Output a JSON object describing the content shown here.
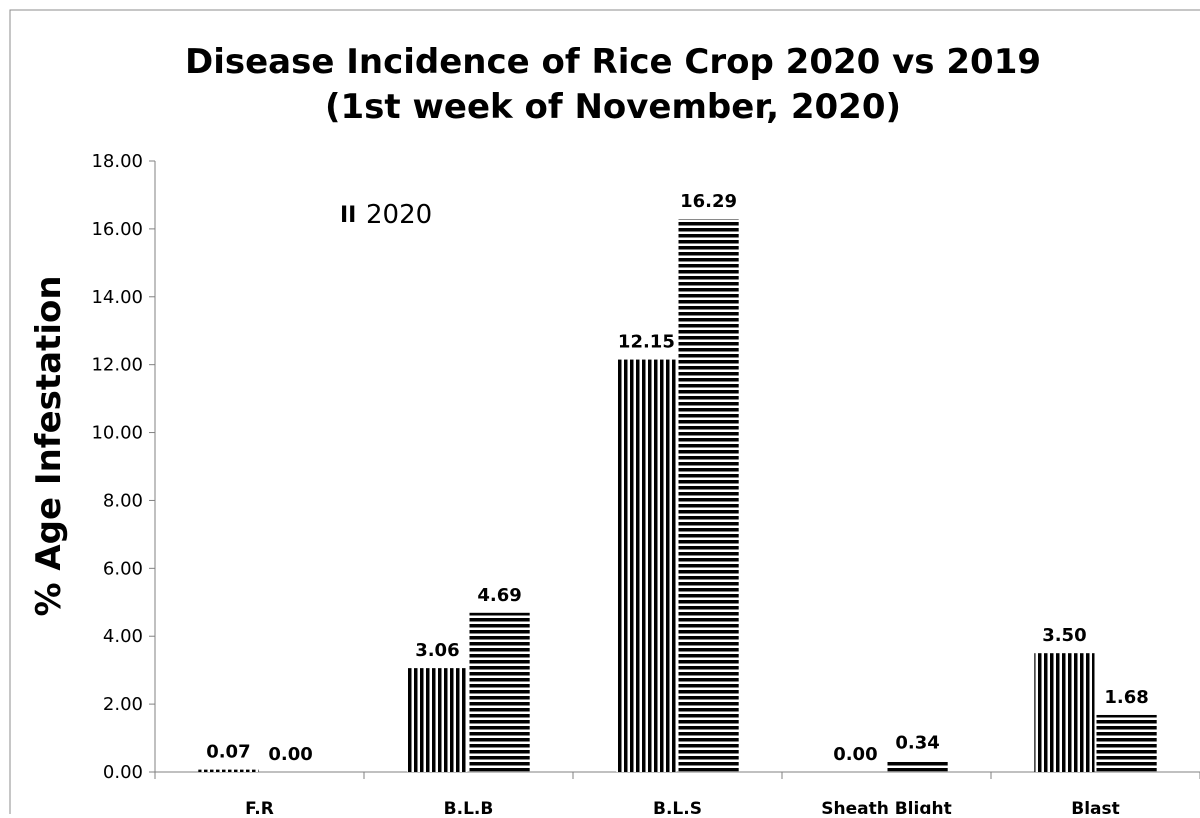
{
  "chart_data": {
    "type": "bar",
    "title": [
      "Disease Incidence of Rice Crop  2020 vs 2019",
      "(1st week of November, 2020)"
    ],
    "ylabel": "% Age Infestation",
    "xlabel": "",
    "categories": [
      "F.R",
      "B.L.B",
      "B.L.S",
      "Sheath Blight",
      "Blast"
    ],
    "series": [
      {
        "name": "2020",
        "pattern": "vertical-stripes",
        "values": [
          0.07,
          3.06,
          12.15,
          0.0,
          3.5
        ],
        "labels": [
          "0.07",
          "3.06",
          "12.15",
          "0.00",
          "3.50"
        ]
      },
      {
        "pattern": "horizontal-stripes",
        "values": [
          0.0,
          4.69,
          16.29,
          0.34,
          1.68
        ],
        "labels": [
          "0.00",
          "4.69",
          "16.29",
          "0.34",
          "1.68"
        ]
      }
    ],
    "ylim": [
      0,
      18
    ],
    "ytick_labels": [
      "0.00",
      "2.00",
      "4.00",
      "6.00",
      "8.00",
      "10.00",
      "12.00",
      "14.00",
      "16.00",
      "18.00"
    ],
    "grid": false,
    "legend": {
      "placement": "top-left",
      "entries": [
        "2020"
      ]
    },
    "colors": {
      "bar": "#000000",
      "background": "#ffffff",
      "axis": "#808080"
    }
  }
}
